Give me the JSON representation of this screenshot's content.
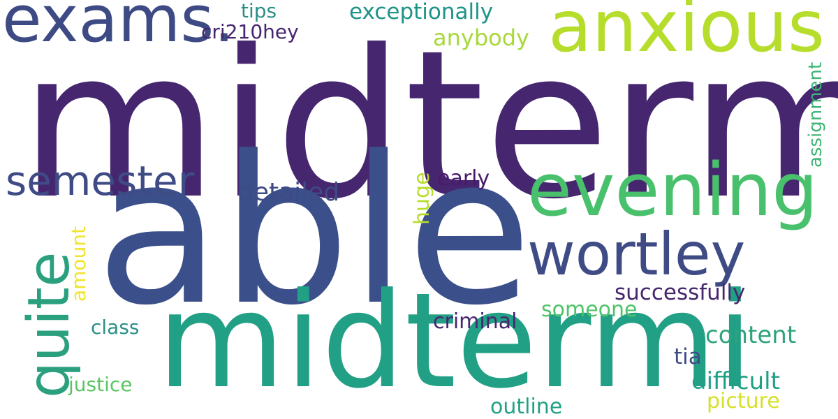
{
  "word_cloud": {
    "background": "#ffffff",
    "words": {
      "midterm": "midterm",
      "able": "able",
      "midtermi": "midtermi",
      "exams": "exams.",
      "anxious": "anxious",
      "evening": "evening",
      "wortley": "wortley",
      "semester": "semester",
      "quite": "quite",
      "tips": "tips",
      "cri": "cri210hey",
      "exceptionally": "exceptionally",
      "anybody": "anybody",
      "assignment": "assignment",
      "detailed": "detailed",
      "huge": "huge",
      "early": "early",
      "amount": "amount",
      "successfully": "successfully",
      "someone": "someone",
      "class": "class",
      "criminal": "criminal",
      "content": "content",
      "tia": "tia",
      "difficult": "difficult",
      "justice": "justice",
      "outline": "outline",
      "picture": "picture"
    }
  }
}
